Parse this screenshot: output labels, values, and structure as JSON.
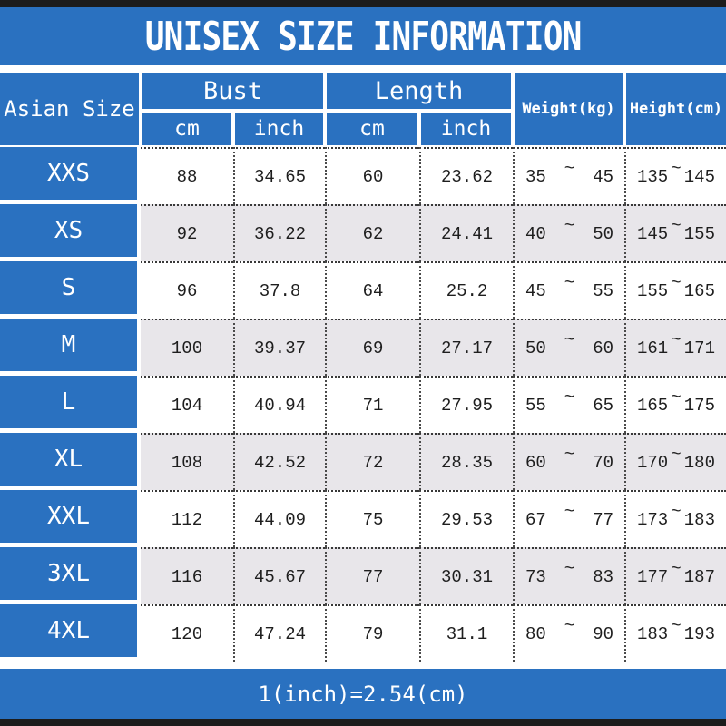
{
  "colors": {
    "accent_blue": "#2a71c0",
    "bar_black": "#1c1c1c",
    "alt_row_gray": "#e8e6ea",
    "data_text": "#1e1e1e",
    "header_text": "#ffffff"
  },
  "chart_data": {
    "type": "table",
    "title": "UNISEX SIZE INFORMATION",
    "footer_note": "1(inch)=2.54(cm)",
    "header": {
      "row_label": "Asian Size",
      "groups": [
        {
          "label": "Bust",
          "sub": [
            "cm",
            "inch"
          ]
        },
        {
          "label": "Length",
          "sub": [
            "cm",
            "inch"
          ]
        }
      ],
      "single_columns": [
        "Weight(kg)",
        "Height(cm)"
      ],
      "range_separator": "~"
    },
    "rows": [
      {
        "size": "XXS",
        "bust_cm": "88",
        "bust_inch": "34.65",
        "length_cm": "60",
        "length_inch": "23.62",
        "weight_min": "35",
        "weight_max": "45",
        "height_min": "135",
        "height_max": "145"
      },
      {
        "size": "XS",
        "bust_cm": "92",
        "bust_inch": "36.22",
        "length_cm": "62",
        "length_inch": "24.41",
        "weight_min": "40",
        "weight_max": "50",
        "height_min": "145",
        "height_max": "155"
      },
      {
        "size": "S",
        "bust_cm": "96",
        "bust_inch": "37.8",
        "length_cm": "64",
        "length_inch": "25.2",
        "weight_min": "45",
        "weight_max": "55",
        "height_min": "155",
        "height_max": "165"
      },
      {
        "size": "M",
        "bust_cm": "100",
        "bust_inch": "39.37",
        "length_cm": "69",
        "length_inch": "27.17",
        "weight_min": "50",
        "weight_max": "60",
        "height_min": "161",
        "height_max": "171"
      },
      {
        "size": "L",
        "bust_cm": "104",
        "bust_inch": "40.94",
        "length_cm": "71",
        "length_inch": "27.95",
        "weight_min": "55",
        "weight_max": "65",
        "height_min": "165",
        "height_max": "175"
      },
      {
        "size": "XL",
        "bust_cm": "108",
        "bust_inch": "42.52",
        "length_cm": "72",
        "length_inch": "28.35",
        "weight_min": "60",
        "weight_max": "70",
        "height_min": "170",
        "height_max": "180"
      },
      {
        "size": "XXL",
        "bust_cm": "112",
        "bust_inch": "44.09",
        "length_cm": "75",
        "length_inch": "29.53",
        "weight_min": "67",
        "weight_max": "77",
        "height_min": "173",
        "height_max": "183"
      },
      {
        "size": "3XL",
        "bust_cm": "116",
        "bust_inch": "45.67",
        "length_cm": "77",
        "length_inch": "30.31",
        "weight_min": "73",
        "weight_max": "83",
        "height_min": "177",
        "height_max": "187"
      },
      {
        "size": "4XL",
        "bust_cm": "120",
        "bust_inch": "47.24",
        "length_cm": "79",
        "length_inch": "31.1",
        "weight_min": "80",
        "weight_max": "90",
        "height_min": "183",
        "height_max": "193"
      }
    ]
  }
}
